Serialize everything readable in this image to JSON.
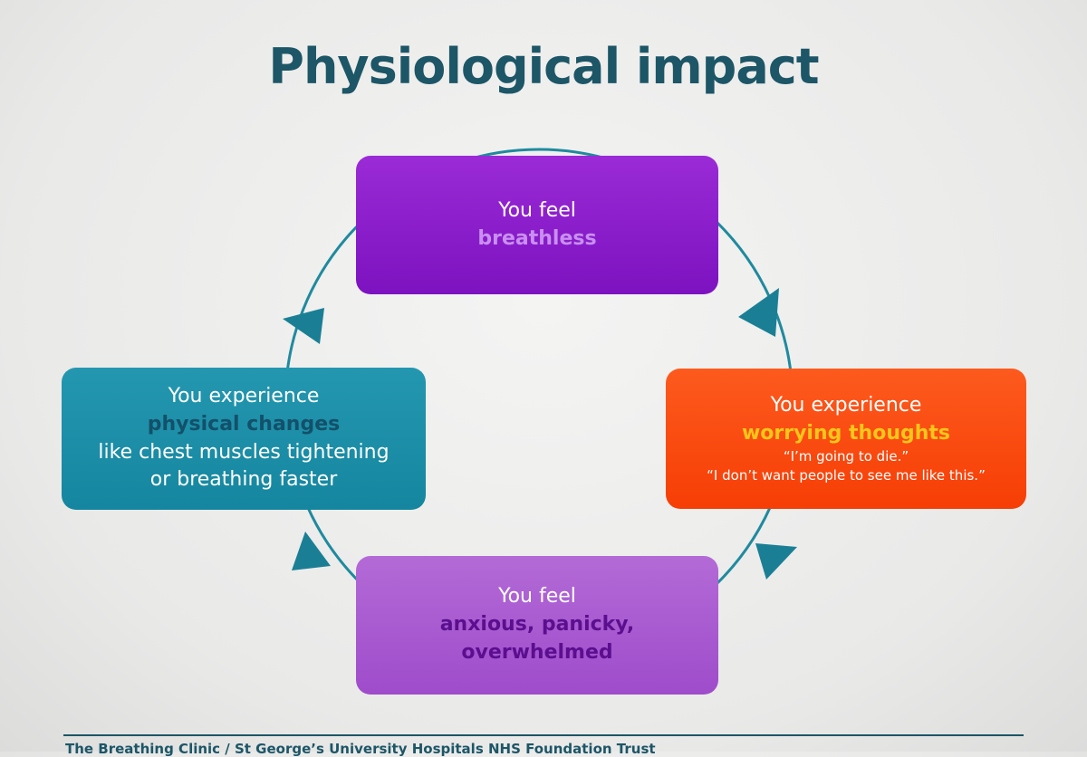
{
  "title": "Physiological impact",
  "nodes": [
    {
      "lines": [
        "You feel",
        "breathless"
      ]
    },
    {
      "lines": [
        "You experience",
        "worrying thoughts",
        "“I’m going to die.”",
        "“I don’t want people to see me like this.”"
      ]
    },
    {
      "lines": [
        "You feel",
        "anxious, panicky,",
        "overwhelmed"
      ]
    },
    {
      "lines": [
        "You experience",
        "physical changes",
        "like chest muscles tightening",
        "or breathing faster"
      ]
    }
  ],
  "footer": "The Breathing Clinic / St George’s University Hospitals NHS Foundation Trust"
}
